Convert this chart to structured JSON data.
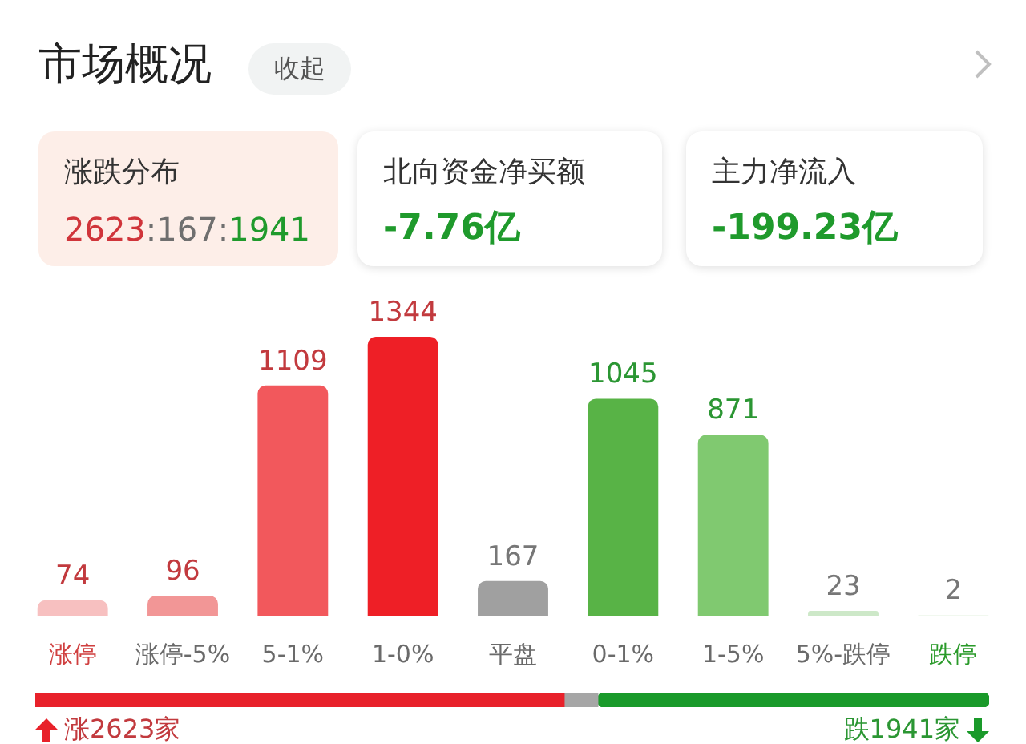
{
  "chart_data": [
    {
      "type": "other",
      "title": "市场概况",
      "annotations": [
        "收起",
        "涨跌分布",
        "2623:167:1941",
        "北向资金净买额",
        "-7.76亿",
        "主力净流入",
        "-199.23亿"
      ]
    },
    {
      "type": "bar",
      "categories": [
        "涨停",
        "涨停-5%",
        "5-1%",
        "1-0%",
        "平盘",
        "0-1%",
        "1-5%",
        "5%-跌停",
        "跌停"
      ],
      "values": [
        74,
        96,
        1109,
        1344,
        167,
        1045,
        871,
        23,
        2
      ],
      "colors": [
        "#f7c0c0",
        "#f29696",
        "#f2585c",
        "#ee1f26",
        "#a0a0a0",
        "#58b346",
        "#80c970",
        "#cde8c8",
        "#e3f2e0"
      ],
      "data_labels": true,
      "tick_labels": "x",
      "grid": false
    },
    {
      "type": "bar",
      "orientation": "horizontal",
      "stacked": true,
      "categories": [
        null
      ],
      "series": [
        {
          "color": "#e8212a",
          "values": [
            2623
          ],
          "value_labels": [
            "涨2623家"
          ]
        },
        {
          "color": "#a6a6a6",
          "values": [
            167
          ],
          "value_labels": [
            null
          ]
        },
        {
          "color": "#1a9a2a",
          "values": [
            1941
          ],
          "value_labels": [
            "跌1941家"
          ]
        }
      ],
      "tick_labels": false
    }
  ]
}
